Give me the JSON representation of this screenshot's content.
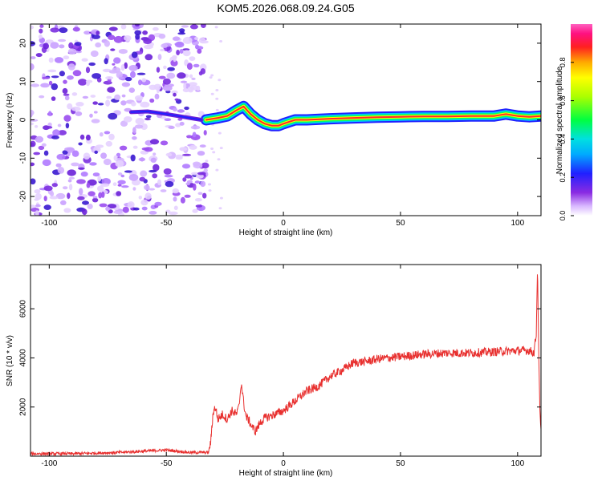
{
  "title": "KOM5.2026.068.09.24.G05",
  "chart_data": [
    {
      "type": "heatmap",
      "xlabel": "Height of straight line (km)",
      "ylabel": "Frequency (Hz)",
      "xlim": [
        -108,
        110
      ],
      "ylim": [
        -25,
        25
      ],
      "xticks": [
        -100,
        -50,
        0,
        50,
        100
      ],
      "yticks": [
        -20,
        -10,
        0,
        10,
        20
      ],
      "colorbar": {
        "label": "Normalized spectral amplitude",
        "range": [
          0,
          1
        ],
        "ticks": [
          0.0,
          0.2,
          0.4,
          0.6,
          0.8
        ]
      },
      "ridge": {
        "x": [
          -33,
          -28,
          -24,
          -20,
          -17,
          -14,
          -11,
          -8,
          -5,
          -2,
          0,
          5,
          10,
          20,
          30,
          40,
          50,
          60,
          70,
          80,
          90,
          95,
          100,
          105,
          110
        ],
        "y": [
          0,
          0.5,
          1,
          2.5,
          3.5,
          1.5,
          0,
          -1,
          -1.5,
          -1.5,
          -1,
          0,
          0,
          0.3,
          0.5,
          0.7,
          0.8,
          0.9,
          0.9,
          1,
          1,
          1.5,
          1,
          0.8,
          1
        ]
      },
      "noise_region_x": [
        -108,
        -33
      ]
    },
    {
      "type": "line",
      "xlabel": "Height of straight line (km)",
      "ylabel": "SNR (10 * v/v)",
      "xlim": [
        -108,
        110
      ],
      "ylim": [
        0,
        7800
      ],
      "xticks": [
        -100,
        -50,
        0,
        50,
        100
      ],
      "yticks": [
        2000,
        4000,
        6000
      ],
      "color": "#e8302f",
      "x": [
        -108,
        -90,
        -70,
        -50,
        -45,
        -40,
        -32,
        -31,
        -30,
        -29,
        -28,
        -26,
        -24,
        -22,
        -20,
        -19,
        -18,
        -17,
        -16,
        -15,
        -14,
        -12,
        -10,
        -8,
        -5,
        0,
        5,
        10,
        15,
        20,
        25,
        30,
        35,
        40,
        50,
        60,
        70,
        80,
        90,
        100,
        105,
        107,
        108,
        108.5,
        109,
        109.5,
        110
      ],
      "y": [
        100,
        100,
        150,
        250,
        200,
        150,
        150,
        600,
        1800,
        2000,
        1500,
        1700,
        1500,
        1850,
        1700,
        2000,
        3000,
        2200,
        1600,
        1500,
        1300,
        1000,
        1350,
        1550,
        1650,
        1850,
        2250,
        2650,
        2850,
        3250,
        3500,
        3800,
        3850,
        3950,
        4050,
        4150,
        4200,
        4200,
        4250,
        4300,
        4300,
        4200,
        5000,
        7800,
        4400,
        1800,
        1000
      ]
    }
  ]
}
